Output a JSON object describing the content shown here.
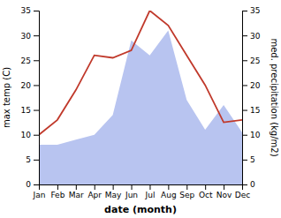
{
  "chart_data": {
    "type": "line",
    "categories": [
      "Jan",
      "Feb",
      "Mar",
      "Apr",
      "May",
      "Jun",
      "Jul",
      "Aug",
      "Sep",
      "Oct",
      "Nov",
      "Dec"
    ],
    "series": [
      {
        "type": "area",
        "axis": "y2",
        "color": "#b8c4f0",
        "values": [
          8,
          8,
          9,
          10,
          14,
          29,
          26,
          31,
          17,
          11,
          16,
          10.5
        ]
      },
      {
        "type": "line",
        "color": "#c0392b",
        "values": [
          10,
          13,
          19,
          26,
          25.5,
          27,
          35,
          32,
          26,
          20,
          12.5,
          13
        ]
      }
    ],
    "xlabel": "date (month)",
    "ylabel": "max temp (C)",
    "y2label": "med. precipitation (kg/m2)",
    "ylim": [
      0,
      35
    ],
    "yticks": [
      0,
      5,
      10,
      15,
      20,
      25,
      30,
      35
    ],
    "y2lim": [
      0,
      35
    ],
    "y2ticks": [
      0,
      5,
      10,
      15,
      20,
      25,
      30,
      35
    ]
  }
}
